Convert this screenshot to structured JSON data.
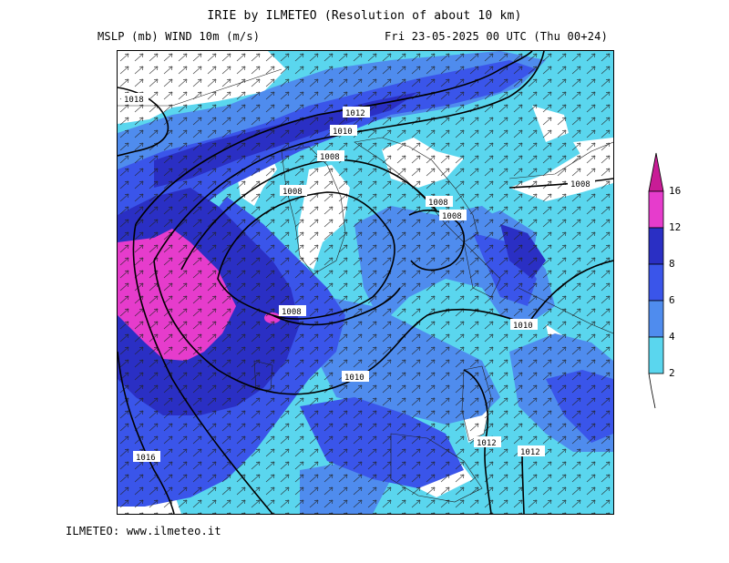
{
  "header": {
    "title": "IRIE by ILMETEO (Resolution of about 10 km)",
    "left_subtitle": "MSLP (mb)  WIND 10m (m/s)",
    "right_subtitle": "Fri 23-05-2025 00 UTC (Thu 00+24)"
  },
  "footer": {
    "text": "ILMETEO: www.ilmeteo.it"
  },
  "legend": {
    "levels": [
      "2",
      "4",
      "6",
      "8",
      "12",
      "16"
    ],
    "colors": [
      "#5ad6ee",
      "#4f8cee",
      "#3a55ea",
      "#2a2fc4",
      "#e63ccc",
      "#c81c96"
    ]
  },
  "map": {
    "palette": {
      "calm": "#ffffff",
      "light": "#5ad6ee",
      "moderate": "#4f8cee",
      "fresh": "#3a55ea",
      "strong": "#2a2fc4",
      "gale": "#e63ccc"
    },
    "isobar_labels": [
      "1018",
      "1012",
      "1010",
      "1008",
      "1008",
      "1008",
      "1008",
      "1008",
      "1008",
      "1010",
      "1010",
      "1012",
      "1012",
      "1016"
    ]
  }
}
